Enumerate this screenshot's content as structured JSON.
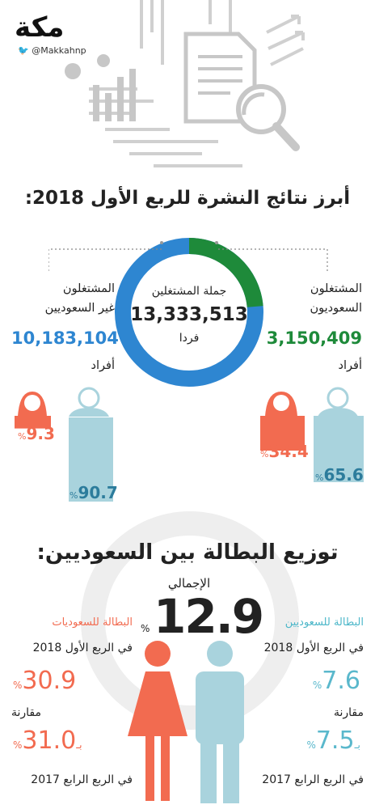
{
  "brand": {
    "logo": "مكة",
    "handle": "@Makkahnp"
  },
  "section1": {
    "title": "أبرز نتائج النشرة للربع الأول 2018:",
    "total": {
      "label": "جملة المشتغلين",
      "value": "13,333,513",
      "unit": "فردا"
    },
    "saudi": {
      "label_line1": "المشتغلون",
      "label_line2": "السعوديون",
      "value": "3,150,409",
      "unit": "أفراد",
      "male_pct": "65.6",
      "female_pct": "34.4"
    },
    "non_saudi": {
      "label_line1": "المشتغلون",
      "label_line2": "غير السعوديين",
      "value": "10,183,104",
      "unit": "أفراد",
      "male_pct": "90.7",
      "female_pct": "9.3"
    },
    "percent_sign": "%",
    "colors": {
      "saudi": "#1e8a3a",
      "non_saudi": "#2e86d1",
      "female": "#f26b50",
      "male": "#a9d3dd"
    }
  },
  "section2": {
    "title": "توزيع البطالة بين السعوديين:",
    "total": {
      "label": "الإجمالي",
      "value": "12.9",
      "sign": "%"
    },
    "men": {
      "title": "البطالة للسعوديين",
      "period1": "في الربع الأول 2018",
      "value1": "7.6",
      "compare": "مقارنة",
      "prefix": "بـ",
      "value2": "7.5",
      "period2": "في الربع الرابع 2017"
    },
    "women": {
      "title": "البطالة للسعوديات",
      "period1": "في الربع الأول 2018",
      "value1": "30.9",
      "compare": "مقارنة",
      "prefix": "بـ",
      "value2": "31.0",
      "period2": "في الربع الرابع 2017"
    },
    "percent_sign": "%"
  },
  "icons": [
    "document-icon",
    "magnifier-icon",
    "bar-chart-icon",
    "female-icon",
    "male-icon",
    "twitter-icon"
  ]
}
